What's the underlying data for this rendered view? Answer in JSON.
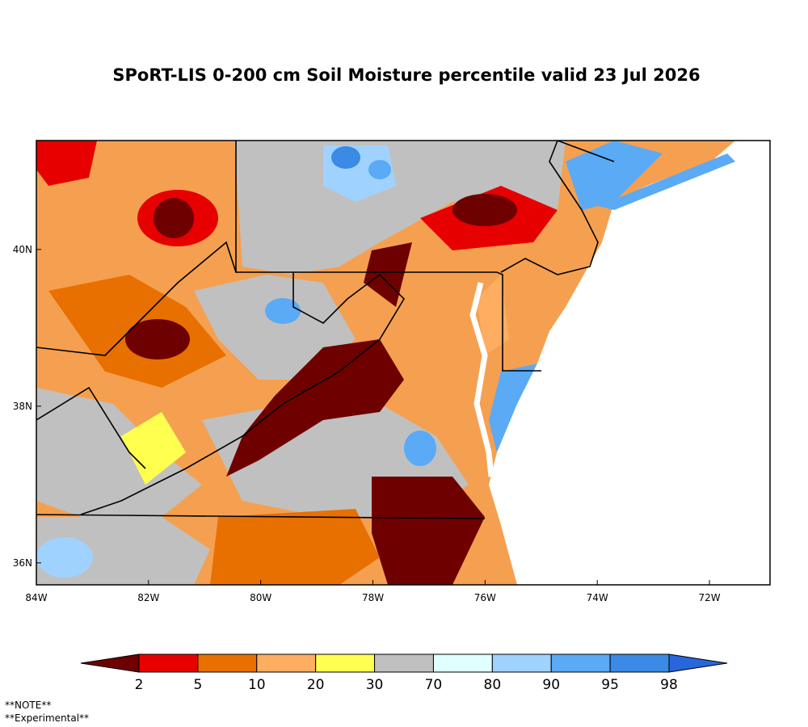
{
  "title": "SPoRT-LIS 0-200 cm Soil Moisture percentile valid 23 Jul 2026",
  "map": {
    "xlim": [
      -84,
      -70.92
    ],
    "ylim": [
      35.72,
      41.39
    ],
    "xticks": [
      {
        "value": -84,
        "label": "84W"
      },
      {
        "value": -82,
        "label": "82W"
      },
      {
        "value": -80,
        "label": "80W"
      },
      {
        "value": -78,
        "label": "78W"
      },
      {
        "value": -76,
        "label": "76W"
      },
      {
        "value": -74,
        "label": "74W"
      },
      {
        "value": -72,
        "label": "72W"
      }
    ],
    "yticks": [
      {
        "value": 36,
        "label": "36N"
      },
      {
        "value": 38,
        "label": "38N"
      },
      {
        "value": 40,
        "label": "40N"
      }
    ]
  },
  "colorbar": {
    "labels": [
      2,
      5,
      10,
      20,
      30,
      70,
      80,
      90,
      95,
      98
    ],
    "colors": [
      "#6e0000",
      "#e60000",
      "#e87000",
      "#ffad60",
      "#ffff50",
      "#c0c0c0",
      "#e0ffff",
      "#a0d2ff",
      "#5aaaf5",
      "#3a8ae6",
      "#2866dc"
    ]
  },
  "notes": [
    "**NOTE**",
    "**Experimental**"
  ]
}
